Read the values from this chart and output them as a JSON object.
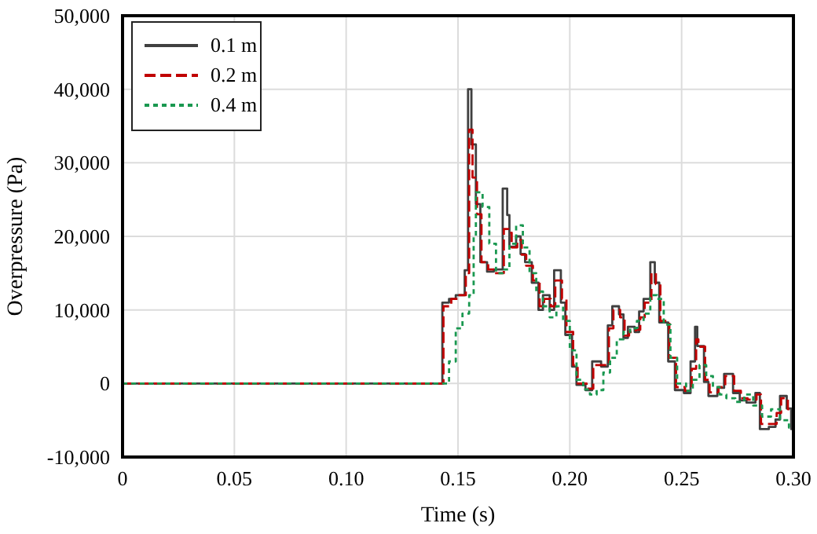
{
  "chart_data": {
    "type": "step",
    "xlabel": "Time (s)",
    "ylabel": "Overpressure (Pa)",
    "xlim": [
      0,
      0.3
    ],
    "xticks": [
      0,
      0.05,
      {
        "value": 0.1,
        "label": "0.10"
      },
      0.15,
      {
        "value": 0.2,
        "label": "0.20"
      },
      0.25,
      {
        "value": 0.3,
        "label": "0.30"
      }
    ],
    "ylim": [
      -10000,
      50000
    ],
    "yticks": [
      {
        "value": -10000,
        "label": "-10,000"
      },
      0,
      {
        "value": 10000,
        "label": "10,000"
      },
      {
        "value": 20000,
        "label": "20,000"
      },
      {
        "value": 30000,
        "label": "30,000"
      },
      {
        "value": 40000,
        "label": "40,000"
      },
      {
        "value": 50000,
        "label": "50,000"
      }
    ],
    "grid": true,
    "legend": "top left",
    "series": [
      {
        "name": "0.1 m",
        "color": "#404040",
        "line_style": "solid",
        "x": [
          0,
          0.142,
          0.143,
          0.146,
          0.149,
          0.153,
          0.1545,
          0.156,
          0.158,
          0.16,
          0.163,
          0.166,
          0.17,
          0.172,
          0.173,
          0.176,
          0.178,
          0.18,
          0.183,
          0.186,
          0.188,
          0.191,
          0.193,
          0.196,
          0.198,
          0.201,
          0.203,
          0.207,
          0.21,
          0.214,
          0.217,
          0.219,
          0.222,
          0.224,
          0.226,
          0.229,
          0.231,
          0.233,
          0.236,
          0.238,
          0.24,
          0.244,
          0.247,
          0.251,
          0.254,
          0.256,
          0.257,
          0.26,
          0.262,
          0.266,
          0.269,
          0.273,
          0.276,
          0.279,
          0.283,
          0.285,
          0.289,
          0.292,
          0.294,
          0.297,
          0.299,
          0.3
        ],
        "values": [
          0,
          0,
          11000,
          11500,
          12000,
          15400,
          40000,
          32500,
          24400,
          16500,
          15200,
          15500,
          26500,
          22900,
          18600,
          20000,
          17600,
          16500,
          13700,
          10000,
          12000,
          10000,
          15400,
          11000,
          6600,
          2300,
          -200,
          -900,
          3000,
          2300,
          7900,
          10500,
          9400,
          6200,
          7700,
          7000,
          9800,
          11500,
          16500,
          13700,
          8300,
          3000,
          -900,
          -1300,
          3000,
          7700,
          5100,
          200,
          -1700,
          -600,
          1300,
          -1300,
          -2300,
          -2600,
          -1300,
          -6200,
          -5900,
          -4900,
          -1700,
          -3400,
          -6200,
          -6000
        ]
      },
      {
        "name": "0.2 m",
        "color": "#c00000",
        "line_style": "dashed",
        "x": [
          0,
          0.142,
          0.1435,
          0.147,
          0.15,
          0.1535,
          0.155,
          0.1565,
          0.1585,
          0.1605,
          0.1635,
          0.1665,
          0.1705,
          0.1725,
          0.174,
          0.1765,
          0.1785,
          0.1805,
          0.1835,
          0.1865,
          0.1885,
          0.1915,
          0.1935,
          0.1965,
          0.1985,
          0.2015,
          0.2035,
          0.2075,
          0.2105,
          0.2145,
          0.2175,
          0.2195,
          0.2225,
          0.2245,
          0.2265,
          0.2295,
          0.2315,
          0.2335,
          0.2365,
          0.2385,
          0.2405,
          0.2445,
          0.2475,
          0.2515,
          0.2545,
          0.2565,
          0.2575,
          0.2605,
          0.2625,
          0.2665,
          0.2695,
          0.2735,
          0.2765,
          0.2795,
          0.2835,
          0.2855,
          0.2895,
          0.2925,
          0.2945,
          0.2975,
          0.3
        ],
        "values": [
          0,
          0,
          10500,
          11500,
          12000,
          15000,
          34500,
          28000,
          23000,
          16500,
          15500,
          15000,
          21000,
          20500,
          18500,
          19500,
          17500,
          16000,
          14000,
          10500,
          11500,
          10500,
          14000,
          11500,
          7000,
          2500,
          0,
          -700,
          2500,
          2500,
          7500,
          10000,
          9000,
          6500,
          7000,
          7300,
          9000,
          11000,
          15000,
          13500,
          8500,
          3500,
          -500,
          -1000,
          2000,
          6000,
          5000,
          500,
          -1200,
          -500,
          1000,
          -1000,
          -2000,
          -2200,
          -1500,
          -5500,
          -5500,
          -4000,
          -2000,
          -3500,
          -6500
        ]
      },
      {
        "name": "0.4 m",
        "color": "#1a9850",
        "line_style": "dotted",
        "x": [
          0,
          0.144,
          0.146,
          0.149,
          0.152,
          0.155,
          0.157,
          0.158,
          0.161,
          0.164,
          0.167,
          0.17,
          0.173,
          0.176,
          0.179,
          0.182,
          0.185,
          0.188,
          0.191,
          0.194,
          0.197,
          0.2,
          0.203,
          0.206,
          0.209,
          0.212,
          0.215,
          0.218,
          0.221,
          0.224,
          0.227,
          0.23,
          0.233,
          0.236,
          0.239,
          0.242,
          0.245,
          0.248,
          0.252,
          0.255,
          0.258,
          0.261,
          0.264,
          0.267,
          0.27,
          0.274,
          0.278,
          0.282,
          0.286,
          0.29,
          0.294,
          0.298,
          0.3
        ],
        "values": [
          0,
          0,
          3000,
          7500,
          9500,
          12000,
          20000,
          26000,
          24000,
          19000,
          15000,
          15500,
          19000,
          21500,
          18500,
          15000,
          12500,
          10500,
          9000,
          10500,
          8500,
          4500,
          500,
          -800,
          -1500,
          -900,
          1500,
          3500,
          6000,
          7000,
          7500,
          8500,
          9500,
          12000,
          11500,
          8000,
          3500,
          0,
          -1000,
          500,
          2500,
          1000,
          -500,
          -1500,
          -2000,
          -2500,
          -1500,
          -3000,
          -4500,
          -3500,
          -5000,
          -6000,
          -6500
        ]
      }
    ]
  }
}
